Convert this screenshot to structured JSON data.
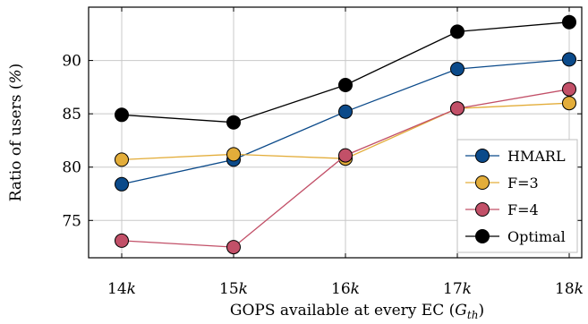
{
  "chart_data": {
    "type": "line",
    "xlabel": "GOPS available at every EC",
    "xlabel_symbol": "G",
    "xlabel_subscript": "th",
    "ylabel": "Ratio of users",
    "ylabel_unit": "%",
    "categories": [
      "14",
      "15",
      "16",
      "17",
      "18"
    ],
    "x_tick_suffix": "k",
    "yticks": [
      75,
      80,
      85,
      90
    ],
    "ylim": [
      71.5,
      95
    ],
    "grid": true,
    "legend_position": "lower-right",
    "series": [
      {
        "name": "HMARL",
        "color": "#0b4a8a",
        "values": [
          78.4,
          80.7,
          85.2,
          89.2,
          90.1
        ]
      },
      {
        "name": "F=3",
        "color": "#e3ad3a",
        "values": [
          80.7,
          81.2,
          80.8,
          85.5,
          86.0
        ]
      },
      {
        "name": "F=4",
        "color": "#c25068",
        "values": [
          73.1,
          72.5,
          81.1,
          85.5,
          87.3
        ]
      },
      {
        "name": "Optimal",
        "color": "#000000",
        "values": [
          84.9,
          84.2,
          87.7,
          92.7,
          93.6
        ]
      }
    ]
  }
}
